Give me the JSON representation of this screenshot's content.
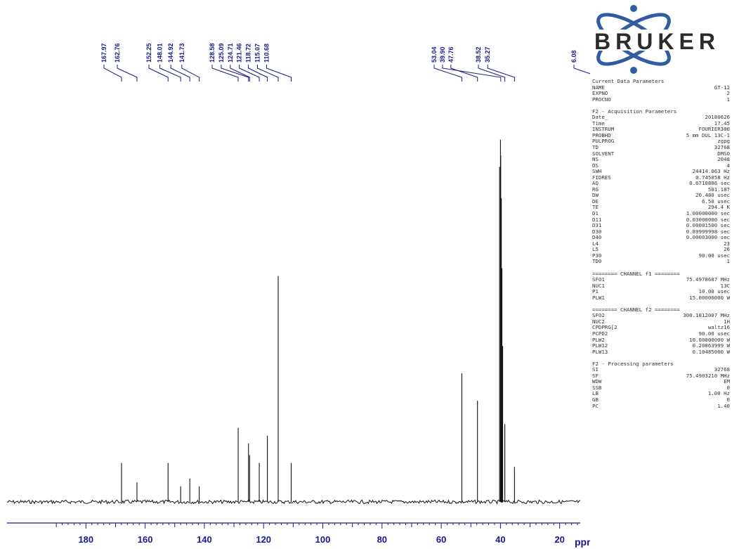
{
  "brand": {
    "logo_text": "BRUKER",
    "logo_color": "#2f5d9e"
  },
  "chart_data": {
    "type": "line",
    "title": "",
    "xlabel": "ppm",
    "ylabel": "",
    "xlim": [
      200,
      0
    ],
    "x_reversed": true,
    "ylim": [
      0,
      1
    ],
    "grid": false,
    "x_ticks": [
      180,
      160,
      140,
      120,
      100,
      80,
      60,
      40,
      20
    ],
    "line_color": "#111111",
    "axis_color": "#1a1a8c",
    "peaks": [
      {
        "ppm": 167.97,
        "label": "167.97",
        "height": 0.1
      },
      {
        "ppm": 162.76,
        "label": "162.76",
        "height": 0.05
      },
      {
        "ppm": 152.25,
        "label": "152.25",
        "height": 0.1
      },
      {
        "ppm": 148.01,
        "label": "148.01",
        "height": 0.04
      },
      {
        "ppm": 144.92,
        "label": "144.92",
        "height": 0.06
      },
      {
        "ppm": 141.73,
        "label": "141.73",
        "height": 0.04
      },
      {
        "ppm": 128.58,
        "label": "128.58",
        "height": 0.19
      },
      {
        "ppm": 125.09,
        "label": "125.09",
        "height": 0.15
      },
      {
        "ppm": 124.71,
        "label": "124.71",
        "height": 0.12
      },
      {
        "ppm": 121.46,
        "label": "121.46",
        "height": 0.1
      },
      {
        "ppm": 118.72,
        "label": "118.72",
        "height": 0.17
      },
      {
        "ppm": 115.07,
        "label": "115.07",
        "height": 0.58
      },
      {
        "ppm": 110.68,
        "label": "110.68",
        "height": 0.1
      },
      {
        "ppm": 53.04,
        "label": "53.04",
        "height": 0.33
      },
      {
        "ppm": 39.9,
        "label": "39.90",
        "height": 0.89
      },
      {
        "ppm": 47.76,
        "label": "47.76",
        "height": 0.26
      },
      {
        "ppm": 38.52,
        "label": "38.52",
        "height": 0.2
      },
      {
        "ppm": 35.27,
        "label": "35.27",
        "height": 0.09
      },
      {
        "ppm": 6.08,
        "label": "6.08",
        "height": 0.49
      }
    ],
    "solvent_cluster": [
      {
        "ppm": 40.3,
        "height": 0.86
      },
      {
        "ppm": 40.0,
        "height": 0.93
      },
      {
        "ppm": 39.7,
        "height": 0.78
      },
      {
        "ppm": 39.5,
        "height": 0.6
      },
      {
        "ppm": 39.25,
        "height": 0.4
      }
    ]
  },
  "parameters": {
    "current": {
      "title": "Current Data Parameters",
      "rows": [
        {
          "k": "NAME",
          "v": "GT-12"
        },
        {
          "k": "EXPNO",
          "v": "2"
        },
        {
          "k": "PROCNO",
          "v": "1"
        }
      ]
    },
    "acquisition": {
      "title": "F2 - Acquisition Parameters",
      "rows": [
        {
          "k": "Date_",
          "v": "20180626"
        },
        {
          "k": "Time",
          "v": "17.45"
        },
        {
          "k": "INSTRUM",
          "v": "FOURIER300"
        },
        {
          "k": "PROBHD",
          "v": "5 mm DUL 13C-1"
        },
        {
          "k": "PULPROG",
          "v": "zgpg"
        },
        {
          "k": "TD",
          "v": "32768"
        },
        {
          "k": "SOLVENT",
          "v": "DMSO"
        },
        {
          "k": "NS",
          "v": "2048"
        },
        {
          "k": "DS",
          "v": "4"
        },
        {
          "k": "SWH",
          "v": "24414.063 Hz"
        },
        {
          "k": "FIDRES",
          "v": "0.745058 Hz"
        },
        {
          "k": "AQ",
          "v": "0.6710886 sec"
        },
        {
          "k": "RG",
          "v": "501.187"
        },
        {
          "k": "DW",
          "v": "20.480 usec"
        },
        {
          "k": "DE",
          "v": "6.50 usec"
        },
        {
          "k": "TE",
          "v": "294.4 K"
        },
        {
          "k": "D1",
          "v": "1.00000000 sec"
        },
        {
          "k": "D11",
          "v": "0.03000000 sec"
        },
        {
          "k": "D31",
          "v": "0.00001500 sec"
        },
        {
          "k": "D30",
          "v": "0.89999998 sec"
        },
        {
          "k": "D40",
          "v": "0.00003000 sec"
        },
        {
          "k": "L4",
          "v": "23"
        },
        {
          "k": "L5",
          "v": "26"
        },
        {
          "k": "P30",
          "v": "90.00 usec"
        },
        {
          "k": "TD0",
          "v": "1"
        }
      ]
    },
    "channel_f1": {
      "title": "======== CHANNEL f1 ========",
      "rows": [
        {
          "k": "SFO1",
          "v": "75.4978687 MHz"
        },
        {
          "k": "NUC1",
          "v": "13C"
        },
        {
          "k": "P1",
          "v": "10.00 usec"
        },
        {
          "k": "PLW1",
          "v": "15.00000000 W"
        }
      ]
    },
    "channel_f2": {
      "title": "======== CHANNEL f2 ========",
      "rows": [
        {
          "k": "SFO2",
          "v": "300.1812007 MHz"
        },
        {
          "k": "NUC2",
          "v": "1H"
        },
        {
          "k": "CPDPRG[2",
          "v": "waltz16"
        },
        {
          "k": "PCPD2",
          "v": "90.00 usec"
        },
        {
          "k": "PLW2",
          "v": "10.00000000 W"
        },
        {
          "k": "PLW12",
          "v": "0.20863999 W"
        },
        {
          "k": "PLW13",
          "v": "0.10485000 W"
        }
      ]
    },
    "processing": {
      "title": "F2 - Processing parameters",
      "rows": [
        {
          "k": "SI",
          "v": "32768"
        },
        {
          "k": "SF",
          "v": "75.4903210 MHz"
        },
        {
          "k": "WDW",
          "v": "EM"
        },
        {
          "k": "SSB",
          "v": "0"
        },
        {
          "k": "LB",
          "v": "1.00 Hz"
        },
        {
          "k": "GB",
          "v": "0"
        },
        {
          "k": "PC",
          "v": "1.40"
        }
      ]
    }
  }
}
